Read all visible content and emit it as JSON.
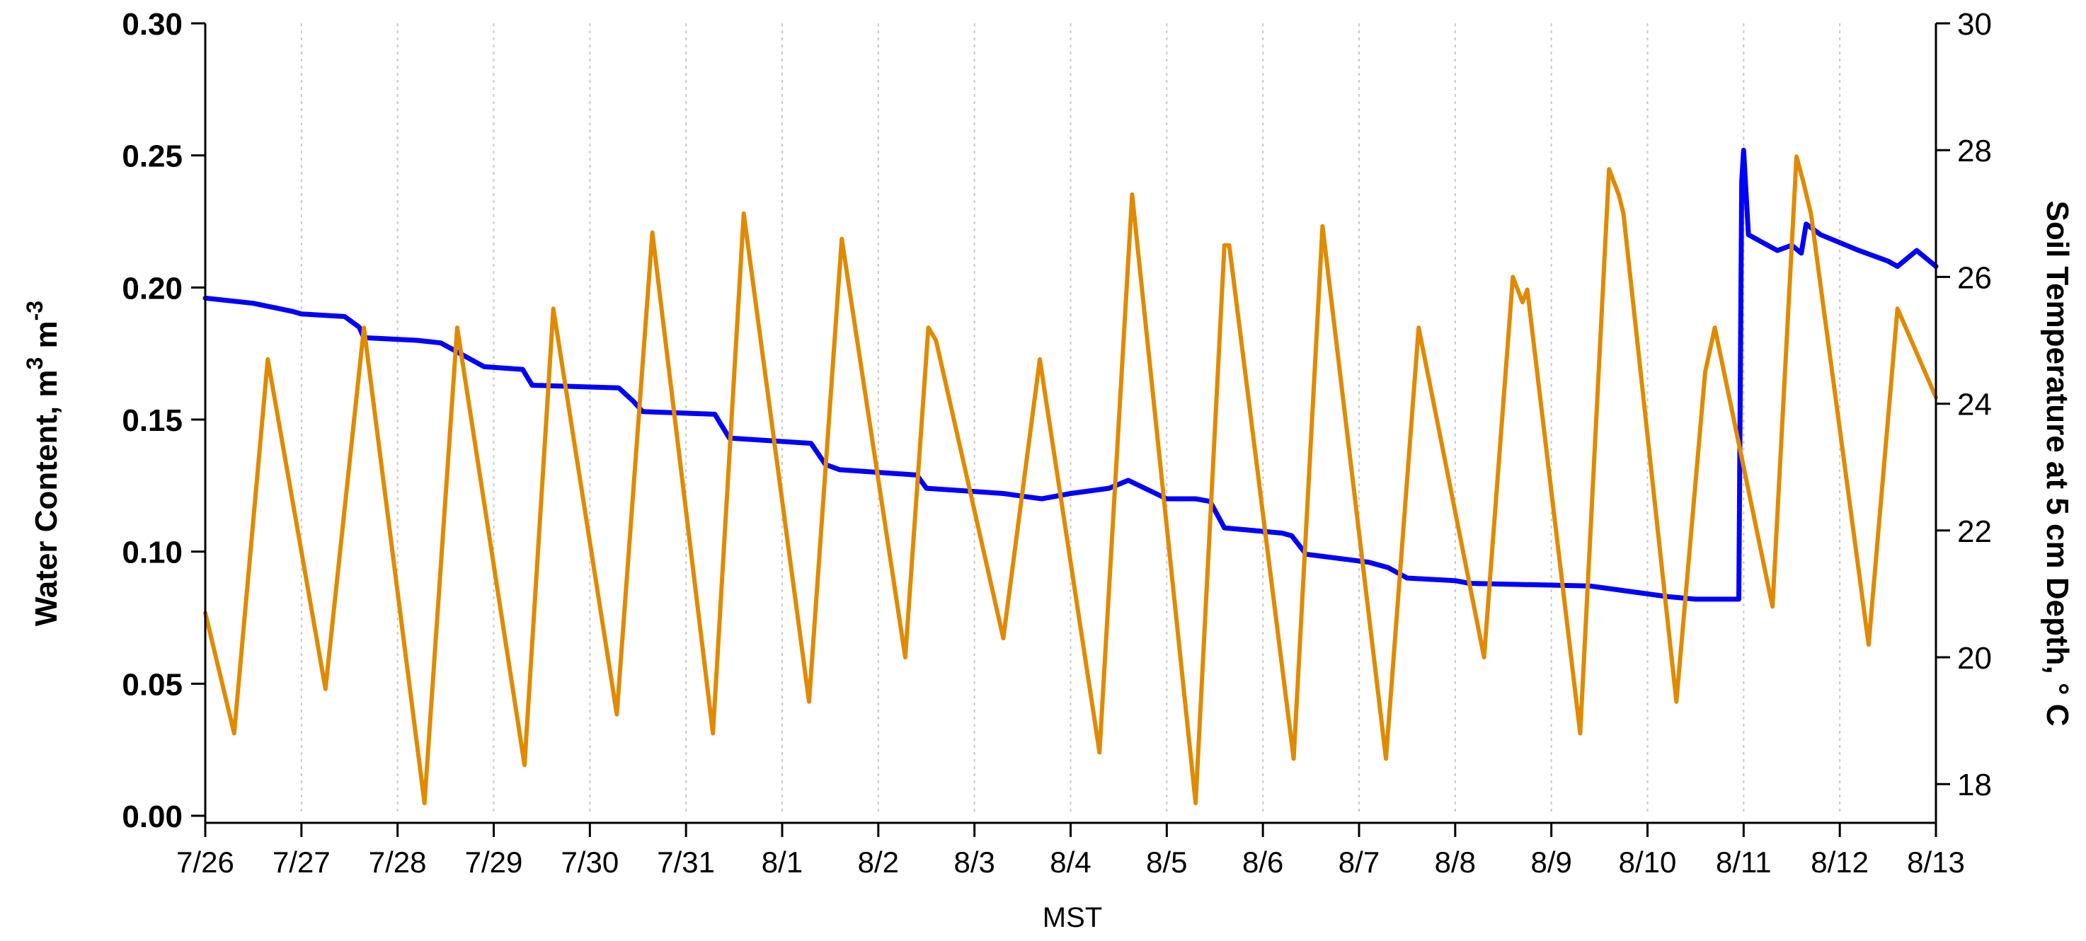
{
  "chart_data": {
    "type": "line",
    "xlabel": "MST",
    "ylabel_left": "Water Content, m3 m-3",
    "ylabel_left_parts": {
      "base": "Water Content, m",
      "sup1": "3",
      "mid": " m",
      "sup2": "-3"
    },
    "ylabel_right": "Soil Temperature at 5 cm Depth, ° C",
    "x_range": [
      "7/26",
      "8/13"
    ],
    "x_tick_labels": [
      "7/26",
      "7/27",
      "7/28",
      "7/29",
      "7/30",
      "7/31",
      "8/1",
      "8/2",
      "8/3",
      "8/4",
      "8/5",
      "8/6",
      "8/7",
      "8/8",
      "8/9",
      "8/10",
      "8/11",
      "8/12",
      "8/13"
    ],
    "ylim_left": [
      0,
      0.3
    ],
    "y_ticks_left": [
      "0.00",
      "0.05",
      "0.10",
      "0.15",
      "0.20",
      "0.25",
      "0.30"
    ],
    "ylim_right": [
      17.5,
      30
    ],
    "y_ticks_right": [
      "18",
      "20",
      "22",
      "24",
      "26",
      "28",
      "30"
    ],
    "grid": {
      "vertical_dotted": true
    },
    "colors": {
      "water": "#0000ff",
      "temperature": "#e08a00",
      "grid": "#c8c8c8"
    },
    "series": [
      {
        "axis": "left",
        "color": "#0000ff",
        "x_days": [
          0.0,
          0.5,
          0.9,
          1.0,
          1.45,
          1.6,
          1.65,
          2.2,
          2.45,
          2.9,
          3.3,
          3.4,
          4.3,
          4.45,
          4.55,
          5.3,
          5.45,
          6.3,
          6.45,
          6.6,
          7.4,
          7.5,
          8.3,
          8.5,
          8.7,
          9.0,
          9.4,
          9.6,
          10.0,
          10.3,
          10.45,
          10.6,
          11.2,
          11.3,
          11.45,
          12.1,
          12.3,
          12.5,
          13.0,
          13.15,
          14.4,
          15.0,
          15.2,
          15.5,
          15.95,
          15.98,
          16.0,
          16.05,
          16.2,
          16.35,
          16.5,
          16.6,
          16.65,
          16.8,
          17.2,
          17.5,
          17.6,
          17.8,
          18.0
        ],
        "values": [
          0.196,
          0.194,
          0.191,
          0.19,
          0.189,
          0.185,
          0.181,
          0.18,
          0.179,
          0.17,
          0.169,
          0.163,
          0.162,
          0.157,
          0.153,
          0.152,
          0.143,
          0.141,
          0.133,
          0.131,
          0.129,
          0.124,
          0.122,
          0.121,
          0.12,
          0.122,
          0.124,
          0.127,
          0.12,
          0.12,
          0.119,
          0.109,
          0.107,
          0.106,
          0.099,
          0.096,
          0.094,
          0.09,
          0.089,
          0.088,
          0.087,
          0.084,
          0.083,
          0.082,
          0.082,
          0.24,
          0.252,
          0.22,
          0.217,
          0.214,
          0.216,
          0.213,
          0.224,
          0.22,
          0.214,
          0.21,
          0.208,
          0.214,
          0.208
        ]
      },
      {
        "axis": "right",
        "color": "#e08a00",
        "x_days": [
          0.0,
          0.3,
          0.65,
          1.25,
          1.65,
          2.28,
          2.62,
          3.32,
          3.62,
          4.28,
          4.65,
          5.28,
          5.6,
          6.28,
          6.62,
          7.28,
          7.52,
          7.6,
          8.3,
          8.68,
          9.3,
          9.64,
          10.3,
          10.6,
          10.65,
          11.32,
          11.62,
          12.28,
          12.62,
          13.3,
          13.6,
          13.7,
          13.75,
          14.3,
          14.6,
          14.7,
          14.75,
          15.3,
          15.6,
          15.7,
          16.3,
          16.55,
          16.62,
          16.7,
          17.3,
          17.6,
          18.0
        ],
        "values": [
          20.7,
          18.8,
          24.7,
          19.5,
          25.2,
          17.7,
          25.2,
          18.3,
          25.5,
          19.1,
          26.7,
          18.8,
          27.0,
          19.3,
          26.6,
          20.0,
          25.2,
          25.0,
          20.3,
          24.7,
          18.5,
          27.3,
          17.7,
          26.5,
          26.5,
          18.4,
          26.8,
          18.4,
          25.2,
          20.0,
          26.0,
          25.6,
          25.8,
          18.8,
          27.7,
          27.3,
          27.0,
          19.3,
          24.5,
          25.2,
          20.8,
          27.9,
          27.5,
          27.0,
          20.2,
          25.5,
          24.1
        ]
      }
    ]
  }
}
